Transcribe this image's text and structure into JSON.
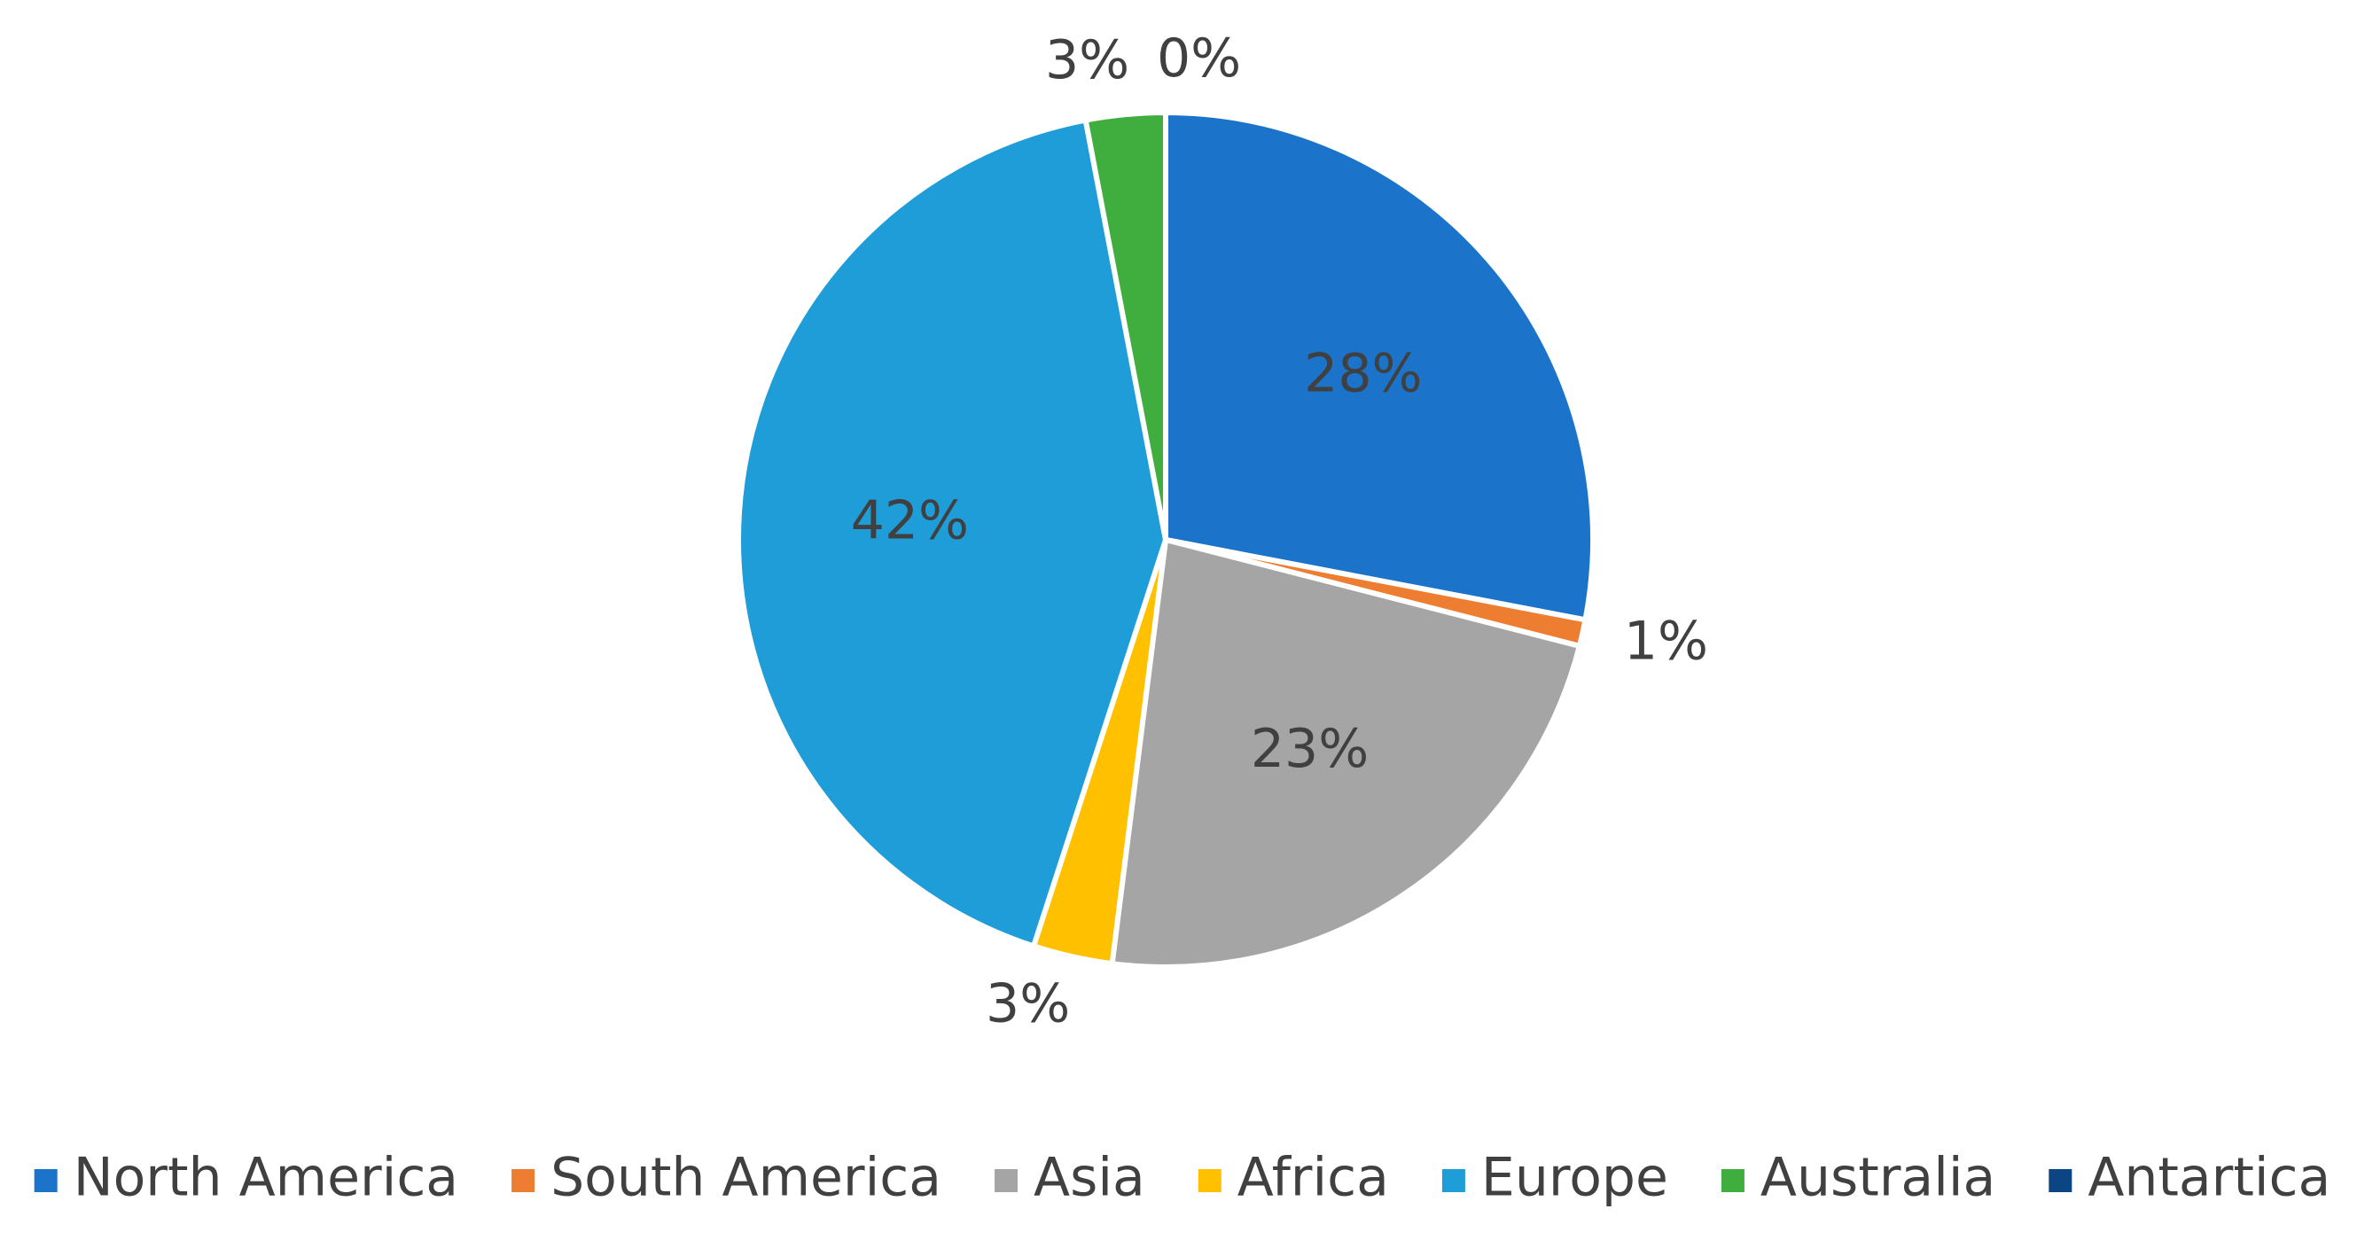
{
  "chart_data": {
    "type": "pie",
    "categories": [
      "North America",
      "South America",
      "Asia",
      "Africa",
      "Europe",
      "Australia",
      "Antartica"
    ],
    "values": [
      28,
      1,
      23,
      3,
      42,
      3,
      0
    ],
    "value_labels": [
      "28%",
      "1%",
      "23%",
      "3%",
      "42%",
      "3%",
      "0%"
    ],
    "colors": [
      "#1b74c9",
      "#ed7d31",
      "#a5a5a5",
      "#ffc000",
      "#1e9dd8",
      "#3fae3f",
      "#0b4584"
    ],
    "legend": "bottom"
  }
}
